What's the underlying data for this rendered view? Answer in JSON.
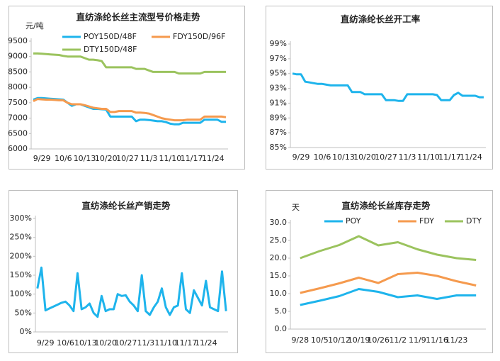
{
  "chart_data": [
    {
      "type": "line",
      "title": "直纺涤纶长丝主流型号价格走势",
      "y_label": "元/吨",
      "categories": [
        null,
        null,
        "9/29",
        null,
        null,
        null,
        null,
        "10/6",
        null,
        null,
        null,
        null,
        "10/13",
        null,
        null,
        null,
        null,
        "10/20",
        null,
        null,
        null,
        null,
        "10/27",
        null,
        null,
        null,
        null,
        "11/3",
        null,
        null,
        null,
        null,
        "11/10",
        null,
        null,
        null,
        null,
        "11/17",
        null,
        null,
        null,
        null,
        "11/24",
        null,
        null,
        null
      ],
      "series": [
        {
          "name": "POY150D/48F",
          "color": "#1eb4ec",
          "values": [
            7600,
            7650,
            7650,
            7640,
            7630,
            7620,
            7610,
            7600,
            7500,
            7400,
            7450,
            7450,
            7400,
            7350,
            7300,
            7300,
            7290,
            7280,
            7050,
            7050,
            7050,
            7050,
            7050,
            7050,
            6900,
            6950,
            6950,
            6940,
            6920,
            6900,
            6900,
            6870,
            6820,
            6800,
            6800,
            6850,
            6850,
            6850,
            6850,
            6850,
            6950,
            6950,
            6950,
            6950,
            6880,
            6880
          ]
        },
        {
          "name": "FDY150D/96F",
          "color": "#f59a4e",
          "values": [
            7550,
            7620,
            7610,
            7600,
            7600,
            7590,
            7580,
            7580,
            7500,
            7450,
            7450,
            7450,
            7420,
            7380,
            7340,
            7320,
            7300,
            7300,
            7200,
            7200,
            7230,
            7230,
            7230,
            7230,
            7180,
            7180,
            7170,
            7150,
            7100,
            7050,
            7000,
            6970,
            6950,
            6930,
            6930,
            6930,
            6950,
            6950,
            6950,
            6950,
            7050,
            7050,
            7050,
            7050,
            7050,
            7030
          ]
        },
        {
          "name": "DTY150D/48F",
          "color": "#9bc35e",
          "values": [
            9100,
            9100,
            9090,
            9080,
            9070,
            9060,
            9050,
            9020,
            9000,
            9000,
            9000,
            9000,
            8950,
            8900,
            8900,
            8880,
            8850,
            8650,
            8650,
            8650,
            8650,
            8650,
            8650,
            8650,
            8600,
            8600,
            8600,
            8550,
            8500,
            8500,
            8500,
            8500,
            8500,
            8500,
            8450,
            8450,
            8450,
            8450,
            8450,
            8450,
            8500,
            8500,
            8500,
            8500,
            8500,
            8500
          ]
        }
      ],
      "ylim": [
        6000,
        9500
      ],
      "yticks": [
        6000,
        6500,
        7000,
        7500,
        8000,
        8500,
        9000,
        9500
      ]
    },
    {
      "type": "line",
      "title": "直纺涤纶长丝开工率",
      "categories": [
        null,
        null,
        "9/29",
        null,
        null,
        null,
        null,
        "10/6",
        null,
        null,
        null,
        null,
        "10/13",
        null,
        null,
        null,
        null,
        "10/20",
        null,
        null,
        null,
        null,
        "10/27",
        null,
        null,
        null,
        null,
        "11/3",
        null,
        null,
        null,
        null,
        "11/10",
        null,
        null,
        null,
        null,
        "11/17",
        null,
        null,
        null,
        null,
        "11/24",
        null,
        null,
        null
      ],
      "series": [
        {
          "color": "#1eb4ec",
          "values": [
            95,
            94.9,
            94.9,
            93.9,
            93.8,
            93.7,
            93.6,
            93.6,
            93.5,
            93.4,
            93.4,
            93.4,
            93.4,
            93.4,
            92.5,
            92.5,
            92.5,
            92.2,
            92.2,
            92.2,
            92.2,
            92.2,
            91.4,
            91.4,
            91.4,
            91.3,
            91.3,
            92.2,
            92.2,
            92.2,
            92.2,
            92.2,
            92.2,
            92.2,
            92.1,
            91.4,
            91.4,
            91.4,
            92.1,
            92.4,
            92.0,
            92.0,
            92.0,
            92.0,
            91.8,
            91.8
          ]
        }
      ],
      "ylim": [
        85,
        99
      ],
      "yticks": [
        {
          "value": 85,
          "label": "85%"
        },
        {
          "value": 87,
          "label": "87%"
        },
        {
          "value": 89,
          "label": "89%"
        },
        {
          "value": 91,
          "label": "91%"
        },
        {
          "value": 93,
          "label": "93%"
        },
        {
          "value": 95,
          "label": "95%"
        },
        {
          "value": 97,
          "label": "97%"
        },
        {
          "value": 99,
          "label": "99%"
        }
      ]
    },
    {
      "type": "line",
      "title": "直纺涤纶长丝产销走势",
      "categories": [
        null,
        null,
        "9/29",
        null,
        null,
        null,
        null,
        "10/6",
        null,
        null,
        null,
        null,
        "10/13",
        null,
        null,
        null,
        null,
        "10/20",
        null,
        null,
        null,
        null,
        "10/27",
        null,
        null,
        null,
        null,
        "11/3",
        null,
        null,
        null,
        null,
        "11/10",
        null,
        null,
        null,
        null,
        "11/17",
        null,
        null,
        null,
        null,
        "11/24",
        null,
        null,
        null,
        null,
        null
      ],
      "series": [
        {
          "color": "#1eb4ec",
          "values": [
            115,
            170,
            57,
            62,
            67,
            72,
            77,
            80,
            70,
            55,
            155,
            60,
            65,
            75,
            50,
            40,
            95,
            55,
            60,
            60,
            100,
            95,
            97,
            80,
            70,
            55,
            150,
            55,
            45,
            65,
            80,
            115,
            65,
            45,
            65,
            70,
            155,
            60,
            50,
            110,
            90,
            70,
            135,
            65,
            60,
            55,
            160,
            55
          ]
        }
      ],
      "ylim": [
        0,
        300
      ],
      "yticks": [
        {
          "value": 0,
          "label": "0%"
        },
        {
          "value": 50,
          "label": "50%"
        },
        {
          "value": 100,
          "label": "100%"
        },
        {
          "value": 150,
          "label": "150%"
        },
        {
          "value": 200,
          "label": "200%"
        },
        {
          "value": 250,
          "label": "250%"
        },
        {
          "value": 300,
          "label": "300%"
        }
      ]
    },
    {
      "type": "line",
      "title": "直纺涤纶长丝库存走势",
      "y_label": "天",
      "categories": [
        "9/28",
        "10/5",
        "10/12",
        "10/19",
        "10/26",
        "11/2",
        "11/9",
        "11/16",
        "11/23",
        null
      ],
      "series": [
        {
          "name": "POY",
          "color": "#1eb4ec",
          "values": [
            6.8,
            8.0,
            9.3,
            11.3,
            10.5,
            9.0,
            9.5,
            8.5,
            9.5,
            9.5
          ]
        },
        {
          "name": "FDY",
          "color": "#f59a4e",
          "values": [
            10.2,
            11.5,
            12.9,
            14.5,
            13.0,
            15.5,
            15.9,
            15.0,
            13.5,
            12.3
          ]
        },
        {
          "name": "DTY",
          "color": "#9bc35e",
          "values": [
            20.0,
            22.0,
            23.7,
            26.2,
            23.6,
            24.5,
            22.5,
            21.0,
            20.0,
            19.5
          ]
        }
      ],
      "ylim": [
        0,
        30
      ],
      "yticks": [
        {
          "value": 0,
          "label": "0.0"
        },
        {
          "value": 5,
          "label": "5.0"
        },
        {
          "value": 10,
          "label": "10.0"
        },
        {
          "value": 15,
          "label": "15.0"
        },
        {
          "value": 20,
          "label": "20.0"
        },
        {
          "value": 25,
          "label": "25.0"
        },
        {
          "value": 30,
          "label": "30.0"
        }
      ]
    }
  ]
}
